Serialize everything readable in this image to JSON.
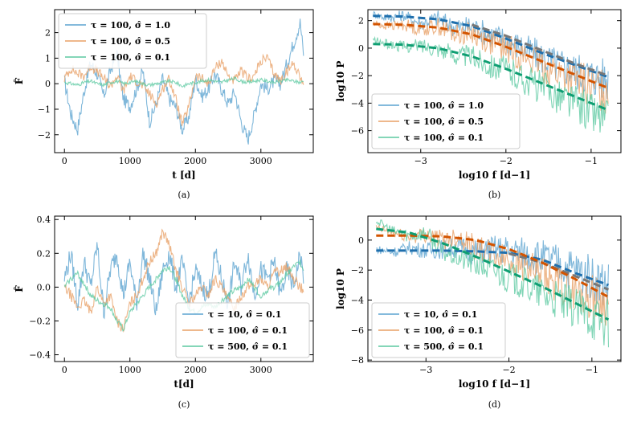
{
  "colors": {
    "blue": "#5ba3d0",
    "orange": "#e8a066",
    "green": "#5cc9a1",
    "blue_fit": "#1f6fad",
    "orange_fit": "#d35400",
    "green_fit": "#0f9e72",
    "grey_fit": "#777777"
  },
  "chart_data": [
    {
      "type": "line",
      "caption": "(a)",
      "xlabel": "t [d]",
      "ylabel": "F̂",
      "xlim": [
        -150,
        3800
      ],
      "ylim": [
        -2.7,
        2.9
      ],
      "xticks": [
        0,
        1000,
        2000,
        3000
      ],
      "xtick_labels": [
        "0",
        "1000",
        "2000",
        "3000"
      ],
      "yticks": [
        -2,
        -1,
        0,
        1,
        2
      ],
      "ytick_labels": [
        "−2",
        "−1",
        "0",
        "1",
        "2"
      ],
      "legend_position": "top-left",
      "series": [
        {
          "name": "τ = 100, σ̂ = 1.0",
          "color": "blue",
          "x": [
            0,
            100,
            200,
            300,
            400,
            500,
            600,
            700,
            800,
            900,
            1000,
            1100,
            1200,
            1300,
            1400,
            1500,
            1600,
            1700,
            1800,
            1900,
            2000,
            2100,
            2200,
            2300,
            2400,
            2500,
            2600,
            2700,
            2800,
            2900,
            3000,
            3100,
            3200,
            3300,
            3400,
            3500,
            3600,
            3650
          ],
          "y": [
            0.1,
            -1.2,
            -1.8,
            -0.3,
            0.8,
            0.4,
            -0.5,
            0.5,
            1.2,
            -0.6,
            -0.9,
            -0.2,
            0.5,
            -1.5,
            -0.8,
            0.2,
            -0.6,
            -0.9,
            -1.8,
            -1.3,
            0.2,
            -0.5,
            -0.2,
            0.4,
            -0.2,
            -0.8,
            -0.3,
            -1.5,
            -2.2,
            -1.2,
            0.0,
            -0.2,
            0.1,
            0.0,
            0.8,
            1.6,
            2.4,
            1.2
          ]
        },
        {
          "name": "τ = 100, σ̂ = 0.5",
          "color": "orange",
          "x": [
            0,
            100,
            200,
            300,
            400,
            500,
            600,
            700,
            800,
            900,
            1000,
            1100,
            1200,
            1300,
            1400,
            1500,
            1600,
            1700,
            1800,
            1900,
            2000,
            2100,
            2200,
            2300,
            2400,
            2500,
            2600,
            2700,
            2800,
            2900,
            3000,
            3100,
            3200,
            3300,
            3400,
            3500,
            3600,
            3650
          ],
          "y": [
            0.2,
            0.6,
            0.4,
            0.3,
            0.7,
            0.5,
            0.2,
            -0.1,
            0.3,
            -0.3,
            0.3,
            0.1,
            -0.1,
            -0.4,
            -0.8,
            -0.2,
            0.2,
            -0.6,
            -1.6,
            -0.9,
            0.3,
            0.2,
            0.0,
            0.6,
            0.9,
            0.3,
            0.1,
            0.5,
            0.2,
            0.3,
            0.9,
            1.0,
            0.4,
            0.1,
            0.5,
            0.8,
            0.3,
            0.0
          ]
        },
        {
          "name": "τ = 100, σ̂ = 0.1",
          "color": "green",
          "x": [
            0,
            100,
            200,
            300,
            400,
            500,
            600,
            700,
            800,
            900,
            1000,
            1100,
            1200,
            1300,
            1400,
            1500,
            1600,
            1700,
            1800,
            1900,
            2000,
            2100,
            2200,
            2300,
            2400,
            2500,
            2600,
            2700,
            2800,
            2900,
            3000,
            3100,
            3200,
            3300,
            3400,
            3500,
            3600,
            3650
          ],
          "y": [
            0.05,
            0.0,
            -0.05,
            0.05,
            0.1,
            0.0,
            -0.05,
            0.05,
            0.1,
            0.0,
            0.05,
            0.1,
            0.0,
            -0.05,
            0.0,
            0.05,
            0.1,
            0.05,
            -0.1,
            0.0,
            0.05,
            0.1,
            0.15,
            0.1,
            0.05,
            0.15,
            0.2,
            0.1,
            0.05,
            0.1,
            0.15,
            0.1,
            0.05,
            0.1,
            0.15,
            0.1,
            0.05,
            0.1
          ]
        }
      ]
    },
    {
      "type": "line",
      "caption": "(b)",
      "xlabel": "log10 f [d−1]",
      "ylabel": "log10 P",
      "xlim": [
        -3.62,
        -0.65
      ],
      "ylim": [
        -7.6,
        2.8
      ],
      "xticks": [
        -3,
        -2,
        -1
      ],
      "xtick_labels": [
        "−3",
        "−2",
        "−1"
      ],
      "yticks": [
        -6,
        -4,
        -2,
        0,
        2
      ],
      "ytick_labels": [
        "−6",
        "−4",
        "−2",
        "0",
        "2"
      ],
      "legend_position": "bottom-left",
      "series": [
        {
          "name": "τ = 100, σ̂ = 1.0",
          "color": "blue",
          "x": [
            -3.56,
            -3.4,
            -3.2,
            -3.0,
            -2.8,
            -2.6,
            -2.4,
            -2.2,
            -2.0,
            -1.8,
            -1.6,
            -1.4,
            -1.2,
            -1.0,
            -0.8
          ],
          "y": [
            2.5,
            2.2,
            2.4,
            1.8,
            2.2,
            1.5,
            1.6,
            1.0,
            0.6,
            0.0,
            -0.6,
            -1.2,
            -1.6,
            -2.0,
            -2.3
          ]
        },
        {
          "name": "τ = 100, σ̂ = 0.5",
          "color": "orange",
          "x": [
            -3.56,
            -3.4,
            -3.2,
            -3.0,
            -2.8,
            -2.6,
            -2.4,
            -2.2,
            -2.0,
            -1.8,
            -1.6,
            -1.4,
            -1.2,
            -1.0,
            -0.8
          ],
          "y": [
            1.8,
            1.6,
            1.7,
            1.4,
            1.6,
            1.0,
            1.1,
            0.5,
            0.0,
            -0.6,
            -1.2,
            -1.8,
            -2.3,
            -2.8,
            -3.2
          ]
        },
        {
          "name": "τ = 100, σ̂ = 0.1",
          "color": "green",
          "x": [
            -3.56,
            -3.4,
            -3.2,
            -3.0,
            -2.8,
            -2.6,
            -2.4,
            -2.2,
            -2.0,
            -1.8,
            -1.6,
            -1.4,
            -1.2,
            -1.0,
            -0.8
          ],
          "y": [
            0.6,
            0.3,
            0.1,
            0.2,
            0.0,
            -0.5,
            -0.6,
            -1.2,
            -1.6,
            -2.2,
            -2.8,
            -3.4,
            -4.0,
            -4.6,
            -5.2
          ]
        },
        {
          "name": "",
          "color": "blue_fit",
          "style": "dashed",
          "x": [
            -3.56,
            -3.2,
            -2.8,
            -2.4,
            -2.0,
            -1.6,
            -1.2,
            -0.8
          ],
          "y": [
            2.35,
            2.3,
            2.1,
            1.6,
            0.7,
            -0.3,
            -1.2,
            -2.1
          ]
        },
        {
          "name": "",
          "color": "grey_fit",
          "style": "dashed",
          "x": [
            -2.4,
            -2.0,
            -1.6,
            -1.2,
            -0.8
          ],
          "y": [
            1.7,
            0.9,
            -0.1,
            -1.1,
            -2.0
          ]
        },
        {
          "name": "",
          "color": "orange_fit",
          "style": "dashed",
          "x": [
            -3.56,
            -3.2,
            -2.8,
            -2.4,
            -2.0,
            -1.6,
            -1.2,
            -0.8
          ],
          "y": [
            1.75,
            1.7,
            1.5,
            1.0,
            0.1,
            -0.9,
            -1.9,
            -2.9
          ]
        },
        {
          "name": "",
          "color": "green_fit",
          "style": "dashed",
          "x": [
            -3.56,
            -3.2,
            -2.8,
            -2.4,
            -2.0,
            -1.6,
            -1.2,
            -0.8
          ],
          "y": [
            0.3,
            0.25,
            0.0,
            -0.6,
            -1.5,
            -2.5,
            -3.5,
            -4.5
          ]
        }
      ]
    },
    {
      "type": "line",
      "caption": "(c)",
      "xlabel": "t[d]",
      "ylabel": "F̂",
      "xlim": [
        -150,
        3800
      ],
      "ylim": [
        -0.44,
        0.42
      ],
      "xticks": [
        0,
        1000,
        2000,
        3000
      ],
      "xtick_labels": [
        "0",
        "1000",
        "2000",
        "3000"
      ],
      "yticks": [
        -0.4,
        -0.2,
        0.0,
        0.2,
        0.4
      ],
      "ytick_labels": [
        "−0.4",
        "−0.2",
        "0.0",
        "0.2",
        "0.4"
      ],
      "legend_position": "bottom-right",
      "series": [
        {
          "name": "τ = 10, σ̂ = 0.1",
          "color": "blue",
          "x": [
            0,
            100,
            200,
            300,
            400,
            500,
            600,
            700,
            800,
            900,
            1000,
            1100,
            1200,
            1300,
            1400,
            1500,
            1600,
            1700,
            1800,
            1900,
            2000,
            2100,
            2200,
            2300,
            2400,
            2500,
            2600,
            2700,
            2800,
            2900,
            3000,
            3100,
            3200,
            3300,
            3400,
            3500,
            3600,
            3650
          ],
          "y": [
            0.05,
            0.2,
            -0.1,
            0.15,
            0.0,
            0.25,
            -0.15,
            0.1,
            0.2,
            -0.05,
            0.15,
            -0.1,
            0.2,
            0.05,
            -0.15,
            0.1,
            0.2,
            0.0,
            0.15,
            -0.1,
            0.1,
            0.0,
            -0.05,
            0.2,
            0.05,
            -0.1,
            0.15,
            0.0,
            0.2,
            -0.05,
            0.1,
            0.05,
            0.15,
            -0.05,
            0.1,
            0.0,
            0.2,
            0.05
          ]
        },
        {
          "name": "τ = 100, σ̂ = 0.1",
          "color": "orange",
          "x": [
            0,
            100,
            200,
            300,
            400,
            500,
            600,
            700,
            800,
            900,
            1000,
            1100,
            1200,
            1300,
            1400,
            1500,
            1600,
            1700,
            1800,
            1900,
            2000,
            2100,
            2200,
            2300,
            2400,
            2500,
            2600,
            2700,
            2800,
            2900,
            3000,
            3100,
            3200,
            3300,
            3400,
            3500,
            3600,
            3650
          ],
          "y": [
            0.0,
            -0.05,
            -0.12,
            -0.08,
            -0.15,
            0.0,
            -0.1,
            -0.05,
            -0.2,
            -0.25,
            -0.1,
            -0.05,
            0.05,
            0.15,
            0.2,
            0.33,
            0.25,
            0.1,
            0.0,
            -0.1,
            -0.05,
            0.0,
            -0.05,
            0.05,
            0.0,
            -0.08,
            -0.12,
            -0.05,
            0.0,
            0.02,
            0.05,
            0.0,
            0.08,
            0.1,
            0.12,
            0.05,
            0.0,
            -0.02
          ]
        },
        {
          "name": "τ = 500, σ̂ = 0.1",
          "color": "green",
          "x": [
            0,
            100,
            200,
            300,
            400,
            500,
            600,
            700,
            800,
            900,
            1000,
            1100,
            1200,
            1300,
            1400,
            1500,
            1600,
            1700,
            1800,
            1900,
            2000,
            2100,
            2200,
            2300,
            2400,
            2500,
            2600,
            2700,
            2800,
            2900,
            3000,
            3100,
            3200,
            3300,
            3400,
            3500,
            3600,
            3650
          ],
          "y": [
            0.0,
            0.05,
            0.08,
            0.02,
            -0.05,
            -0.08,
            -0.1,
            -0.12,
            -0.2,
            -0.25,
            -0.15,
            -0.1,
            -0.05,
            0.0,
            0.05,
            0.1,
            0.12,
            0.05,
            -0.05,
            -0.12,
            -0.15,
            -0.12,
            -0.1,
            -0.12,
            -0.08,
            -0.05,
            -0.02,
            0.0,
            0.05,
            0.0,
            -0.05,
            -0.02,
            0.0,
            0.03,
            0.08,
            0.12,
            0.15,
            0.1
          ]
        }
      ]
    },
    {
      "type": "line",
      "caption": "(d)",
      "xlabel": "log10 f [d−1]",
      "ylabel": "log10 P",
      "xlim": [
        -3.7,
        -0.65
      ],
      "ylim": [
        -8.1,
        1.6
      ],
      "xticks": [
        -3,
        -2,
        -1
      ],
      "xtick_labels": [
        "−3",
        "−2",
        "−1"
      ],
      "yticks": [
        -8,
        -6,
        -4,
        -2,
        0
      ],
      "ytick_labels": [
        "−8",
        "−6",
        "−4",
        "−2",
        "0"
      ],
      "legend_position": "bottom-left",
      "series": [
        {
          "name": "τ = 10, σ̂ = 0.1",
          "color": "blue",
          "x": [
            -3.6,
            -3.4,
            -3.2,
            -3.0,
            -2.8,
            -2.6,
            -2.4,
            -2.2,
            -2.0,
            -1.8,
            -1.6,
            -1.4,
            -1.2,
            -1.0,
            -0.8
          ],
          "y": [
            -0.6,
            -0.8,
            -0.5,
            -0.7,
            -0.6,
            -0.5,
            -0.8,
            -0.6,
            -0.7,
            -0.9,
            -1.2,
            -1.6,
            -2.0,
            -2.5,
            -3.0
          ]
        },
        {
          "name": "τ = 100, σ̂ = 0.1",
          "color": "orange",
          "x": [
            -3.6,
            -3.4,
            -3.2,
            -3.0,
            -2.8,
            -2.6,
            -2.4,
            -2.2,
            -2.0,
            -1.8,
            -1.6,
            -1.4,
            -1.2,
            -1.0,
            -0.8
          ],
          "y": [
            0.8,
            0.5,
            0.2,
            0.4,
            0.0,
            0.3,
            -0.5,
            -1.0,
            -1.3,
            -1.8,
            -2.4,
            -2.9,
            -3.4,
            -3.8,
            -4.2
          ]
        },
        {
          "name": "τ = 500, σ̂ = 0.1",
          "color": "green",
          "x": [
            -3.6,
            -3.4,
            -3.2,
            -3.0,
            -2.8,
            -2.6,
            -2.4,
            -2.2,
            -2.0,
            -1.8,
            -1.6,
            -1.4,
            -1.2,
            -1.0,
            -0.8
          ],
          "y": [
            1.3,
            0.6,
            0.3,
            0.5,
            -0.8,
            -1.2,
            -1.6,
            -2.0,
            -2.5,
            -3.0,
            -3.6,
            -4.1,
            -4.6,
            -5.1,
            -5.6
          ]
        },
        {
          "name": "",
          "color": "blue_fit",
          "style": "dashed",
          "x": [
            -3.6,
            -3.2,
            -2.8,
            -2.4,
            -2.0,
            -1.6,
            -1.2,
            -0.8
          ],
          "y": [
            -0.7,
            -0.7,
            -0.7,
            -0.75,
            -0.85,
            -1.3,
            -2.2,
            -3.0
          ]
        },
        {
          "name": "",
          "color": "grey_fit",
          "style": "dashed",
          "x": [
            -2.0,
            -1.6,
            -1.2,
            -0.8
          ],
          "y": [
            -0.9,
            -1.5,
            -2.4,
            -3.3
          ]
        },
        {
          "name": "",
          "color": "orange_fit",
          "style": "dashed",
          "x": [
            -3.6,
            -3.2,
            -2.8,
            -2.4,
            -2.0,
            -1.6,
            -1.2,
            -0.8
          ],
          "y": [
            0.3,
            0.3,
            0.25,
            0.0,
            -0.6,
            -1.5,
            -2.6,
            -3.8
          ]
        },
        {
          "name": "",
          "color": "green_fit",
          "style": "dashed",
          "x": [
            -3.6,
            -3.2,
            -2.8,
            -2.4,
            -2.0,
            -1.6,
            -1.2,
            -0.8
          ],
          "y": [
            0.75,
            0.5,
            -0.2,
            -1.1,
            -2.1,
            -3.1,
            -4.2,
            -5.3
          ]
        }
      ]
    }
  ]
}
